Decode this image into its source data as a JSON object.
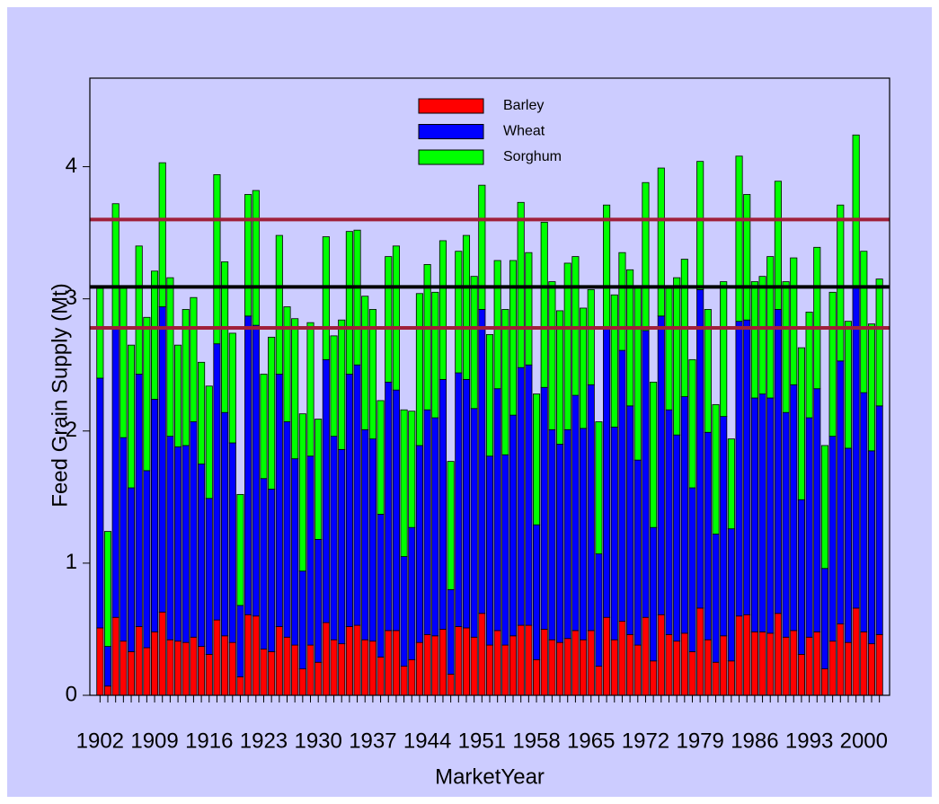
{
  "chart_data": {
    "type": "stacked-bar",
    "x_label": "MarketYear",
    "y_label": "Feed Grain Supply (Mt)",
    "categories": [
      "1902",
      null,
      null,
      null,
      null,
      null,
      null,
      "1909",
      null,
      null,
      null,
      null,
      null,
      null,
      "1916",
      null,
      null,
      null,
      null,
      null,
      null,
      "1923",
      null,
      null,
      null,
      null,
      null,
      null,
      "1930",
      null,
      null,
      null,
      null,
      null,
      null,
      "1937",
      null,
      null,
      null,
      null,
      null,
      null,
      "1944",
      null,
      null,
      null,
      null,
      null,
      null,
      "1951",
      null,
      null,
      null,
      null,
      null,
      null,
      "1958",
      null,
      null,
      null,
      null,
      null,
      null,
      "1965",
      null,
      null,
      null,
      null,
      null,
      null,
      "1972",
      null,
      null,
      null,
      null,
      null,
      null,
      "1979",
      null,
      null,
      null,
      null,
      null,
      null,
      "1986",
      null,
      null,
      null,
      null,
      null,
      null,
      "1993",
      null,
      null,
      null,
      null,
      null,
      null,
      "2000",
      null,
      null
    ],
    "series": [
      {
        "name": "Barley",
        "color": "#ff0000",
        "values": [
          0.51,
          0.07,
          0.59,
          0.41,
          0.33,
          0.52,
          0.36,
          0.48,
          0.63,
          0.42,
          0.41,
          0.4,
          0.44,
          0.37,
          0.31,
          0.57,
          0.45,
          0.4,
          0.14,
          0.61,
          0.6,
          0.35,
          0.33,
          0.52,
          0.44,
          0.38,
          0.2,
          0.38,
          0.25,
          0.55,
          0.42,
          0.39,
          0.52,
          0.53,
          0.42,
          0.41,
          0.29,
          0.49,
          0.49,
          0.22,
          0.27,
          0.4,
          0.46,
          0.45,
          0.5,
          0.16,
          0.52,
          0.51,
          0.44,
          0.62,
          0.38,
          0.49,
          0.38,
          0.45,
          0.53,
          0.53,
          0.27,
          0.5,
          0.42,
          0.4,
          0.43,
          0.49,
          0.42,
          0.49,
          0.22,
          0.59,
          0.42,
          0.56,
          0.46,
          0.38,
          0.59,
          0.26,
          0.61,
          0.46,
          0.41,
          0.47,
          0.33,
          0.66,
          0.42,
          0.25,
          0.45,
          0.26,
          0.6,
          0.61,
          0.48,
          0.48,
          0.47,
          0.62,
          0.44,
          0.49,
          0.31,
          0.44,
          0.48,
          0.2,
          0.41,
          0.54,
          0.4,
          0.66,
          0.48,
          0.39,
          0.46
        ]
      },
      {
        "name": "Wheat",
        "color": "#0000ff",
        "values": [
          1.89,
          0.3,
          2.19,
          1.54,
          1.24,
          1.91,
          1.34,
          1.76,
          2.31,
          1.54,
          1.47,
          1.49,
          1.63,
          1.38,
          1.18,
          2.09,
          1.69,
          1.51,
          0.54,
          2.26,
          2.2,
          1.29,
          1.23,
          1.91,
          1.63,
          1.41,
          0.74,
          1.43,
          0.93,
          1.99,
          1.54,
          1.47,
          1.91,
          1.97,
          1.59,
          1.53,
          1.08,
          1.88,
          1.82,
          0.83,
          1.0,
          1.49,
          1.7,
          1.65,
          1.89,
          0.64,
          1.92,
          1.88,
          1.73,
          2.3,
          1.43,
          1.83,
          1.44,
          1.67,
          1.95,
          1.97,
          1.02,
          1.83,
          1.59,
          1.5,
          1.58,
          1.78,
          1.6,
          1.86,
          0.85,
          2.2,
          1.61,
          2.05,
          1.73,
          1.4,
          2.17,
          1.01,
          2.26,
          1.7,
          1.56,
          1.79,
          1.24,
          2.41,
          1.57,
          0.97,
          1.66,
          1.0,
          2.23,
          2.23,
          1.77,
          1.8,
          1.78,
          2.3,
          1.7,
          1.86,
          1.17,
          1.66,
          1.84,
          0.76,
          1.55,
          1.99,
          1.47,
          2.43,
          1.81,
          1.46,
          1.73
        ]
      },
      {
        "name": "Sorghum",
        "color": "#00ff00",
        "values": [
          0.68,
          0.87,
          0.94,
          1.13,
          1.08,
          0.97,
          1.16,
          0.97,
          1.09,
          1.2,
          0.77,
          1.03,
          0.94,
          0.77,
          0.85,
          1.28,
          1.14,
          0.83,
          0.84,
          0.92,
          1.02,
          0.79,
          1.15,
          1.05,
          0.87,
          1.06,
          1.19,
          1.01,
          0.91,
          0.93,
          0.76,
          0.98,
          1.08,
          1.02,
          1.01,
          0.98,
          0.86,
          0.95,
          1.09,
          1.11,
          0.88,
          1.15,
          1.1,
          0.95,
          1.05,
          0.97,
          0.92,
          1.09,
          1.0,
          0.94,
          0.92,
          0.97,
          1.1,
          1.17,
          1.25,
          0.85,
          0.99,
          1.25,
          1.12,
          1.01,
          1.26,
          1.05,
          0.91,
          0.72,
          1.0,
          0.92,
          1.0,
          0.74,
          1.03,
          1.32,
          1.12,
          1.1,
          1.12,
          0.92,
          1.19,
          1.04,
          0.97,
          0.97,
          0.93,
          0.98,
          1.02,
          0.68,
          1.25,
          0.95,
          0.88,
          0.89,
          1.07,
          0.97,
          0.99,
          0.96,
          1.15,
          0.8,
          1.07,
          0.93,
          1.09,
          1.18,
          0.96,
          1.15,
          1.07,
          0.96,
          0.96
        ]
      }
    ],
    "hlines": [
      {
        "value": 3.6,
        "color": "#a0203a"
      },
      {
        "value": 3.09,
        "color": "#000000"
      },
      {
        "value": 2.78,
        "color": "#a0203a"
      }
    ],
    "ylim": [
      0,
      4.67
    ],
    "yticks": [
      0,
      1,
      2,
      3,
      4
    ],
    "legend": "top"
  }
}
